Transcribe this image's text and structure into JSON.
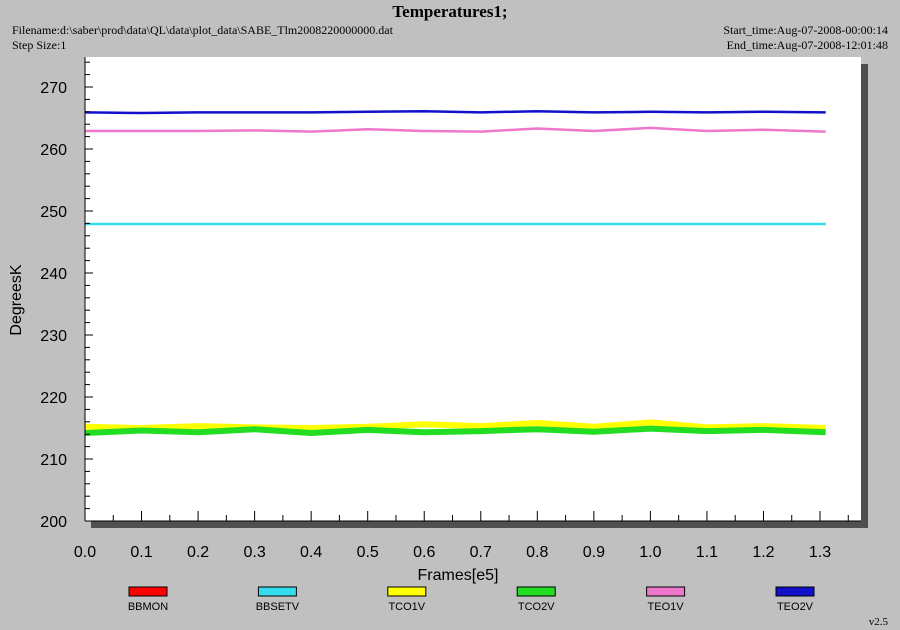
{
  "header": {
    "title": "Temperatures1;",
    "filename": "Filename:d:\\saber\\prod\\data\\QL\\data\\plot_data\\SABE_Tlm2008220000000.dat",
    "step_size": "Step Size:1",
    "start_time": "Start_time:Aug-07-2008-00:00:14",
    "end_time": "End_time:Aug-07-2008-12:01:48"
  },
  "version": "v2.5",
  "colors": {
    "background": "#c0c0c0",
    "plot_area": "#ffffff",
    "BBMON": "#ff0000",
    "BBSETV": "#33ddee",
    "TCO1V": "#ffff00",
    "TCO2V": "#22dd22",
    "TEO1V": "#ee77cc",
    "TEO2V": "#1111cc"
  },
  "chart_data": {
    "type": "line",
    "title": "Temperatures1;",
    "xlabel": "Frames[e5]",
    "ylabel": "DegreesK",
    "xlim": [
      0.0,
      1.38
    ],
    "ylim": [
      200,
      275
    ],
    "x_ticks": [
      "0.0",
      "0.1",
      "0.2",
      "0.3",
      "0.4",
      "0.5",
      "0.6",
      "0.7",
      "0.8",
      "0.9",
      "1.0",
      "1.1",
      "1.2",
      "1.3"
    ],
    "y_ticks": [
      "200",
      "210",
      "220",
      "230",
      "240",
      "250",
      "260",
      "270"
    ],
    "grid": false,
    "legend_placement": "bottom",
    "series": [
      {
        "name": "BBMON",
        "color": "#ff0000",
        "x": [],
        "y": []
      },
      {
        "name": "BBSETV",
        "color": "#33ddee",
        "x": [
          0.0,
          0.2,
          0.4,
          0.6,
          0.8,
          1.0,
          1.2,
          1.31
        ],
        "y": [
          247.9,
          247.9,
          247.9,
          247.9,
          247.9,
          247.9,
          247.9,
          247.9
        ]
      },
      {
        "name": "TCO1V",
        "color": "#ffff00",
        "x": [
          0.0,
          0.1,
          0.2,
          0.3,
          0.4,
          0.5,
          0.6,
          0.7,
          0.8,
          0.9,
          1.0,
          1.1,
          1.2,
          1.31
        ],
        "y": [
          215.2,
          215.0,
          215.3,
          215.1,
          215.0,
          215.2,
          215.6,
          215.3,
          215.8,
          215.2,
          215.9,
          215.1,
          215.3,
          215.0
        ]
      },
      {
        "name": "TCO2V",
        "color": "#22dd22",
        "x": [
          0.0,
          0.1,
          0.2,
          0.3,
          0.4,
          0.5,
          0.6,
          0.7,
          0.8,
          0.9,
          1.0,
          1.1,
          1.2,
          1.31
        ],
        "y": [
          214.2,
          214.6,
          214.3,
          214.8,
          214.2,
          214.7,
          214.3,
          214.5,
          214.8,
          214.4,
          214.9,
          214.5,
          214.7,
          214.3
        ]
      },
      {
        "name": "TEO1V",
        "color": "#ee77cc",
        "x": [
          0.0,
          0.1,
          0.2,
          0.3,
          0.4,
          0.5,
          0.6,
          0.7,
          0.8,
          0.9,
          1.0,
          1.1,
          1.2,
          1.31
        ],
        "y": [
          262.9,
          262.9,
          262.9,
          263.0,
          262.8,
          263.2,
          262.9,
          262.8,
          263.3,
          262.9,
          263.4,
          262.9,
          263.1,
          262.8
        ]
      },
      {
        "name": "TEO2V",
        "color": "#1111cc",
        "x": [
          0.0,
          0.1,
          0.2,
          0.3,
          0.4,
          0.5,
          0.6,
          0.7,
          0.8,
          0.9,
          1.0,
          1.1,
          1.2,
          1.31
        ],
        "y": [
          265.9,
          265.8,
          265.9,
          265.9,
          265.9,
          266.0,
          266.1,
          265.9,
          266.1,
          265.9,
          266.0,
          265.9,
          266.0,
          265.9
        ]
      }
    ]
  }
}
